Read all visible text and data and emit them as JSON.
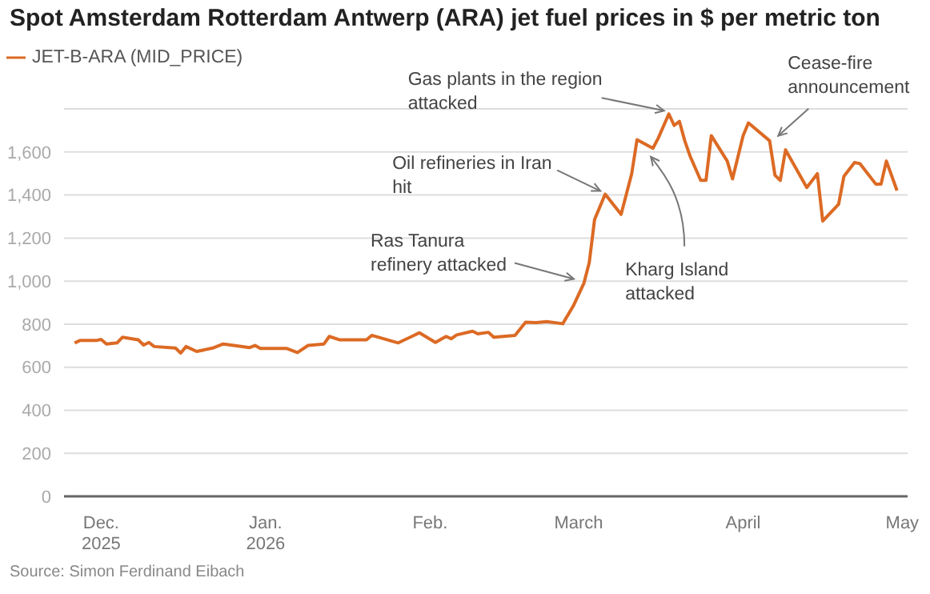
{
  "chart_data": {
    "type": "line",
    "title": "Spot Amsterdam Rotterdam Antwerp (ARA) jet fuel prices in $ per metric ton",
    "x": [
      "2025-11-26",
      "2025-11-27",
      "2025-11-30",
      "2025-12-01",
      "2025-12-02",
      "2025-12-04",
      "2025-12-05",
      "2025-12-08",
      "2025-12-09",
      "2025-12-10",
      "2025-12-11",
      "2025-12-15",
      "2025-12-16",
      "2025-12-17",
      "2025-12-19",
      "2025-12-22",
      "2025-12-24",
      "2025-12-26",
      "2025-12-29",
      "2025-12-30",
      "2025-12-31",
      "2026-01-05",
      "2026-01-07",
      "2026-01-09",
      "2026-01-12",
      "2026-01-13",
      "2026-01-15",
      "2026-01-20",
      "2026-01-21",
      "2026-01-26",
      "2026-01-30",
      "2026-02-02",
      "2026-02-04",
      "2026-02-05",
      "2026-02-06",
      "2026-02-09",
      "2026-02-10",
      "2026-02-12",
      "2026-02-13",
      "2026-02-17",
      "2026-02-19",
      "2026-02-21",
      "2026-02-23",
      "2026-02-26",
      "2026-02-28",
      "2026-03-02",
      "2026-03-03",
      "2026-03-04",
      "2026-03-06",
      "2026-03-09",
      "2026-03-11",
      "2026-03-12",
      "2026-03-15",
      "2026-03-16",
      "2026-03-18",
      "2026-03-19",
      "2026-03-20",
      "2026-03-21",
      "2026-03-22",
      "2026-03-24",
      "2026-03-25",
      "2026-03-26",
      "2026-03-29",
      "2026-03-30",
      "2026-04-01",
      "2026-04-02",
      "2026-04-06",
      "2026-04-07",
      "2026-04-08",
      "2026-04-09",
      "2026-04-13",
      "2026-04-15",
      "2026-04-16",
      "2026-04-19",
      "2026-04-20",
      "2026-04-22",
      "2026-04-23",
      "2026-04-26",
      "2026-04-27",
      "2026-04-28",
      "2026-04-30"
    ],
    "series": [
      {
        "name": "JET-B-ARA (MID_PRICE)",
        "color": "#dc6a24",
        "values": [
          713,
          724,
          724,
          729,
          708,
          713,
          739,
          727,
          703,
          715,
          696,
          689,
          666,
          696,
          673,
          689,
          708,
          701,
          691,
          701,
          687,
          687,
          668,
          701,
          708,
          743,
          727,
          727,
          748,
          713,
          760,
          715,
          743,
          732,
          750,
          767,
          755,
          762,
          739,
          748,
          809,
          807,
          812,
          802,
          885,
          991,
          1086,
          1286,
          1404,
          1310,
          1499,
          1657,
          1617,
          1664,
          1777,
          1723,
          1742,
          1652,
          1581,
          1468,
          1468,
          1676,
          1558,
          1475,
          1676,
          1735,
          1652,
          1492,
          1468,
          1610,
          1435,
          1499,
          1279,
          1357,
          1487,
          1551,
          1546,
          1451,
          1451,
          1558,
          1421
        ]
      }
    ],
    "xlim": [
      "2025-11-24",
      "2026-05-02"
    ],
    "xticks": [
      {
        "value": "2025-12-01",
        "label": "Dec.\n2025"
      },
      {
        "value": "2026-01-01",
        "label": "Jan.\n2026"
      },
      {
        "value": "2026-02-01",
        "label": "Feb."
      },
      {
        "value": "2026-03-01",
        "label": "March"
      },
      {
        "value": "2026-04-01",
        "label": "April"
      },
      {
        "value": "2026-05-01",
        "label": "May"
      }
    ],
    "ylim": [
      0,
      1800
    ],
    "yticks": [
      {
        "value": 0,
        "label": "0"
      },
      {
        "value": 200,
        "label": "200"
      },
      {
        "value": 400,
        "label": "400"
      },
      {
        "value": 600,
        "label": "600"
      },
      {
        "value": 800,
        "label": "800"
      },
      {
        "value": 1000,
        "label": "1,000"
      },
      {
        "value": 1200,
        "label": "1,200"
      },
      {
        "value": 1400,
        "label": "1,400"
      },
      {
        "value": 1600,
        "label": "1,600"
      }
    ],
    "grid": "y",
    "legend": "top left",
    "marker": "none",
    "line_style": "solid",
    "annotations": [
      {
        "text": "Ras Tanura refinery attacked",
        "x": "2026-03-01",
        "y": 995
      },
      {
        "text": "Oil refineries in Iran hit",
        "x": "2026-03-06",
        "y": 1404
      },
      {
        "text": "Gas plants in the region attacked",
        "x": "2026-03-18",
        "y": 1777
      },
      {
        "text": "Kharg Island attacked",
        "x": "2026-03-14",
        "y": 1600
      },
      {
        "text": "Cease-fire announcement",
        "x": "2026-04-07",
        "y": 1660
      },
      "Source: Simon Ferdinand Eibach"
    ]
  }
}
